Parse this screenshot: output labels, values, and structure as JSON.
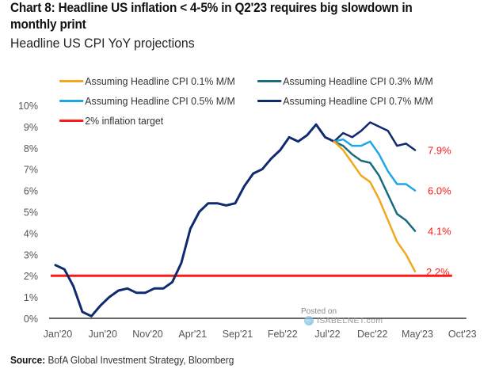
{
  "header": {
    "title": "Chart 8: Headline US inflation < 4-5% in Q2'23 requires big slowdown in monthly print",
    "subtitle": "Headline US CPI YoY projections"
  },
  "legend": [
    {
      "label": "Assuming Headline CPI 0.1% M/M",
      "color": "#f2a81d"
    },
    {
      "label": "Assuming Headline CPI 0.3% M/M",
      "color": "#1a6a80"
    },
    {
      "label": "Assuming Headline CPI 0.5% M/M",
      "color": "#1ea7e8"
    },
    {
      "label": "Assuming Headline CPI 0.7% M/M",
      "color": "#0f2a6e"
    },
    {
      "label": "2% inflation target",
      "color": "#ff1a1a"
    }
  ],
  "source": {
    "label": "Source:",
    "text": "BofA Global Investment Strategy, Bloomberg"
  },
  "watermark": {
    "line1": "Posted on",
    "line2": "ISABELNET.com"
  },
  "chart_data": {
    "type": "line",
    "title": "Chart 8: Headline US inflation < 4-5% in Q2'23 requires big slowdown in monthly print",
    "subtitle": "Headline US CPI YoY projections",
    "xlabel": "",
    "ylabel": "",
    "ylim": [
      0,
      10
    ],
    "yticks": [
      "0%",
      "1%",
      "2%",
      "3%",
      "4%",
      "5%",
      "6%",
      "7%",
      "8%",
      "9%",
      "10%"
    ],
    "xticks": [
      "Jan'20",
      "Jun'20",
      "Nov'20",
      "Apr'21",
      "Sep'21",
      "Feb'22",
      "Jul'22",
      "Dec'22",
      "May'23",
      "Oct'23"
    ],
    "x_range": [
      "Jan'20",
      "Oct'23"
    ],
    "grid": false,
    "legend_position": "top",
    "history": {
      "name": "Headline US CPI YoY (actual)",
      "start": "Jan'20",
      "values": [
        2.5,
        2.3,
        1.5,
        0.3,
        0.1,
        0.6,
        1.0,
        1.3,
        1.4,
        1.2,
        1.2,
        1.4,
        1.4,
        1.7,
        2.6,
        4.2,
        5.0,
        5.4,
        5.4,
        5.3,
        5.4,
        6.2,
        6.8,
        7.0,
        7.5,
        7.9,
        8.5,
        8.3,
        8.6,
        9.1,
        8.5,
        8.3
      ]
    },
    "series": [
      {
        "name": "Assuming Headline CPI 0.1% M/M",
        "start": "Aug'22",
        "values": [
          8.3,
          7.9,
          7.3,
          6.7,
          6.4,
          5.6,
          4.6,
          3.6,
          3.0,
          2.2
        ],
        "end_label": "2.2%"
      },
      {
        "name": "Assuming Headline CPI 0.3% M/M",
        "start": "Aug'22",
        "values": [
          8.3,
          8.1,
          7.7,
          7.4,
          7.3,
          6.7,
          5.8,
          4.9,
          4.6,
          4.1
        ],
        "end_label": "4.1%"
      },
      {
        "name": "Assuming Headline CPI 0.5% M/M",
        "start": "Aug'22",
        "values": [
          8.3,
          8.4,
          8.1,
          8.1,
          8.3,
          7.7,
          6.9,
          6.3,
          6.3,
          6.0
        ],
        "end_label": "6.0%"
      },
      {
        "name": "Assuming Headline CPI 0.7% M/M",
        "start": "Aug'22",
        "values": [
          8.3,
          8.7,
          8.5,
          8.8,
          9.2,
          9.0,
          8.8,
          8.1,
          8.2,
          7.9
        ],
        "end_label": "7.9%"
      }
    ],
    "reference_lines": [
      {
        "name": "2% inflation target",
        "y": 2.0
      }
    ]
  }
}
